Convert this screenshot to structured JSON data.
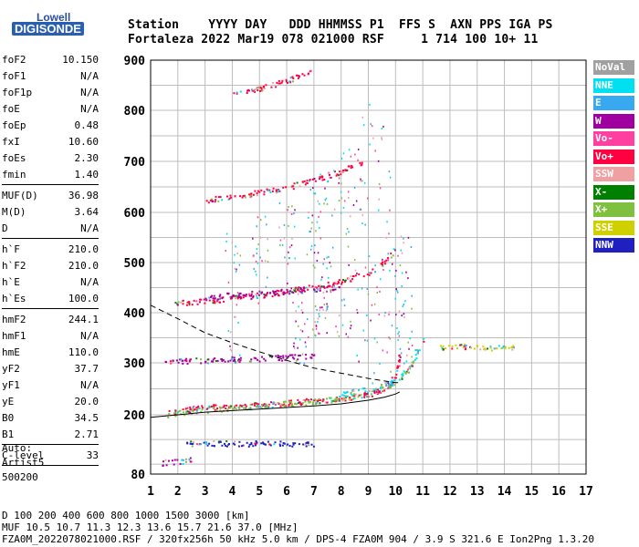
{
  "logo": {
    "brand": "Lowell",
    "product": "DIGISONDE"
  },
  "header": {
    "row1": "Station    YYYY DAY   DDD HHMMSS P1  FFS S  AXN PPS IGA PS",
    "row2": "Fortaleza 2022 Mar19 078 021000 RSF     1 714 100 10+ 11"
  },
  "params_group1": [
    {
      "name": "foF2",
      "value": "10.150"
    },
    {
      "name": "foF1",
      "value": "N/A"
    },
    {
      "name": "foF1p",
      "value": "N/A"
    },
    {
      "name": "foE",
      "value": "N/A"
    },
    {
      "name": "foEp",
      "value": "0.48"
    },
    {
      "name": "fxI",
      "value": "10.60"
    },
    {
      "name": "foEs",
      "value": "2.30"
    },
    {
      "name": "fmin",
      "value": "1.40"
    }
  ],
  "params_group2": [
    {
      "name": "MUF(D)",
      "value": "36.98"
    },
    {
      "name": "M(D)",
      "value": "3.64"
    },
    {
      "name": "D",
      "value": "N/A"
    }
  ],
  "params_group3": [
    {
      "name": "h`F",
      "value": "210.0"
    },
    {
      "name": "h`F2",
      "value": "210.0"
    },
    {
      "name": "h`E",
      "value": "N/A"
    },
    {
      "name": "h`Es",
      "value": "100.0"
    }
  ],
  "params_group4": [
    {
      "name": "hmF2",
      "value": "244.1"
    },
    {
      "name": "hmF1",
      "value": "N/A"
    },
    {
      "name": "hmE",
      "value": "110.0"
    },
    {
      "name": "yF2",
      "value": "37.7"
    },
    {
      "name": "yF1",
      "value": "N/A"
    },
    {
      "name": "yE",
      "value": "20.0"
    },
    {
      "name": "B0",
      "value": "34.5"
    },
    {
      "name": "B1",
      "value": "2.71"
    }
  ],
  "params_group5": [
    {
      "name": "C-level",
      "value": "33"
    }
  ],
  "autoscaling": {
    "line1": "Auto:",
    "line2": "Artist5",
    "line3": "500200"
  },
  "legend": [
    {
      "label": "NoVal",
      "color": "#a0a0a0"
    },
    {
      "label": "NNE",
      "color": "#00e0f0"
    },
    {
      "label": "E",
      "color": "#38a8f0"
    },
    {
      "label": "W",
      "color": "#a000a0"
    },
    {
      "label": "Vo-",
      "color": "#ff40a0"
    },
    {
      "label": "Vo+",
      "color": "#ff0040"
    },
    {
      "label": "SSW",
      "color": "#f0a0a0"
    },
    {
      "label": "X-",
      "color": "#008000"
    },
    {
      "label": "X+",
      "color": "#80c040"
    },
    {
      "label": "SSE",
      "color": "#d0d000"
    },
    {
      "label": "NNW",
      "color": "#2020c0"
    }
  ],
  "footer": {
    "line1": "D     100  200  400  600  800 1000 1500 3000 [km]",
    "line2": "MUF  10.5 10.7 11.3 12.3 13.6 15.7 21.6 37.0 [MHz]",
    "line3": "FZA0M_2022078021000.RSF / 320fx256h 50 kHz 5.0 km / DPS-4 FZA0M 904 / 3.9 S 321.6 E   Ion2Png 1.3.20"
  },
  "chart_data": {
    "type": "scatter",
    "xlim": [
      1,
      17
    ],
    "ylim": [
      80,
      900
    ],
    "xticks": [
      1,
      2,
      3,
      4,
      5,
      6,
      7,
      8,
      9,
      10,
      11,
      12,
      13,
      14,
      15,
      16,
      17
    ],
    "yticks": [
      80,
      200,
      300,
      400,
      500,
      600,
      700,
      800,
      900
    ],
    "grid": true,
    "traces": [
      {
        "name": "F2 O-trace (1st hop)",
        "color": "#ff0040",
        "x": [
          1.6,
          2,
          3,
          4,
          5,
          6,
          7,
          8,
          9,
          9.5,
          9.8,
          10.0,
          10.1,
          10.15
        ],
        "y": [
          205,
          210,
          215,
          218,
          221,
          224,
          228,
          232,
          240,
          250,
          262,
          280,
          300,
          330
        ]
      },
      {
        "name": "F2 X-trace (1st hop)",
        "color": "#80c040",
        "x": [
          1.6,
          2,
          3,
          4,
          5,
          6,
          7,
          8,
          9,
          10,
          10.5,
          10.8
        ],
        "y": [
          200,
          205,
          210,
          214,
          218,
          222,
          226,
          232,
          242,
          262,
          290,
          330
        ]
      },
      {
        "name": "NNE echoes",
        "color": "#00e0f0",
        "x": [
          8,
          9,
          10,
          10.5,
          10.8,
          11.0
        ],
        "y": [
          240,
          250,
          265,
          290,
          320,
          350
        ]
      },
      {
        "name": "Es trace",
        "color": "#2020c0",
        "x": [
          2.3,
          3,
          4,
          5,
          6,
          7
        ],
        "y": [
          143,
          143,
          143,
          143,
          143,
          143
        ]
      },
      {
        "name": "E trace",
        "color": "#a000a0",
        "x": [
          1.4,
          1.8,
          2.2,
          2.5
        ],
        "y": [
          104,
          106,
          108,
          110
        ]
      },
      {
        "name": "SSE spread",
        "color": "#d0d000",
        "x": [
          11.5,
          12,
          12.5,
          13,
          13.5,
          14.0,
          14.3
        ],
        "y": [
          330,
          332,
          334,
          332,
          330,
          332,
          330
        ]
      },
      {
        "name": "F2 2nd hop",
        "color": "#ff0040",
        "x": [
          1.8,
          3,
          4,
          5,
          6,
          7,
          8,
          9,
          9.6,
          10.0
        ],
        "y": [
          420,
          424,
          430,
          436,
          444,
          452,
          464,
          480,
          500,
          530
        ]
      },
      {
        "name": "F2 3rd hop",
        "color": "#ff0040",
        "x": [
          3,
          4,
          5,
          6,
          7,
          8,
          8.8
        ],
        "y": [
          625,
          632,
          640,
          650,
          664,
          682,
          700
        ]
      },
      {
        "name": "F2 4th hop",
        "color": "#ff0040",
        "x": [
          4,
          5,
          6,
          7
        ],
        "y": [
          835,
          845,
          860,
          880
        ]
      },
      {
        "name": "Es 2nd hop",
        "color": "#a000a0",
        "x": [
          1.5,
          2,
          3,
          4,
          5,
          6,
          7
        ],
        "y": [
          300,
          304,
          306,
          308,
          310,
          312,
          314
        ]
      },
      {
        "name": "Es 3rd hop",
        "color": "#a000a0",
        "x": [
          3,
          4,
          5,
          6,
          7,
          8
        ],
        "y": [
          430,
          436,
          440,
          444,
          448,
          452
        ]
      }
    ],
    "profile_solid": {
      "x": [
        1,
        2,
        3,
        4,
        5,
        6,
        7,
        8,
        9,
        9.6,
        10.0,
        10.15
      ],
      "y": [
        195,
        200,
        205,
        208,
        211,
        214,
        217,
        221,
        228,
        234,
        240,
        244.1
      ]
    },
    "profile_dashed": {
      "x": [
        1,
        2,
        3,
        4,
        5,
        6,
        7,
        8,
        9,
        10.0,
        10.1
      ],
      "y": [
        415,
        388,
        360,
        340,
        322,
        305,
        290,
        280,
        270,
        262,
        262
      ]
    }
  }
}
